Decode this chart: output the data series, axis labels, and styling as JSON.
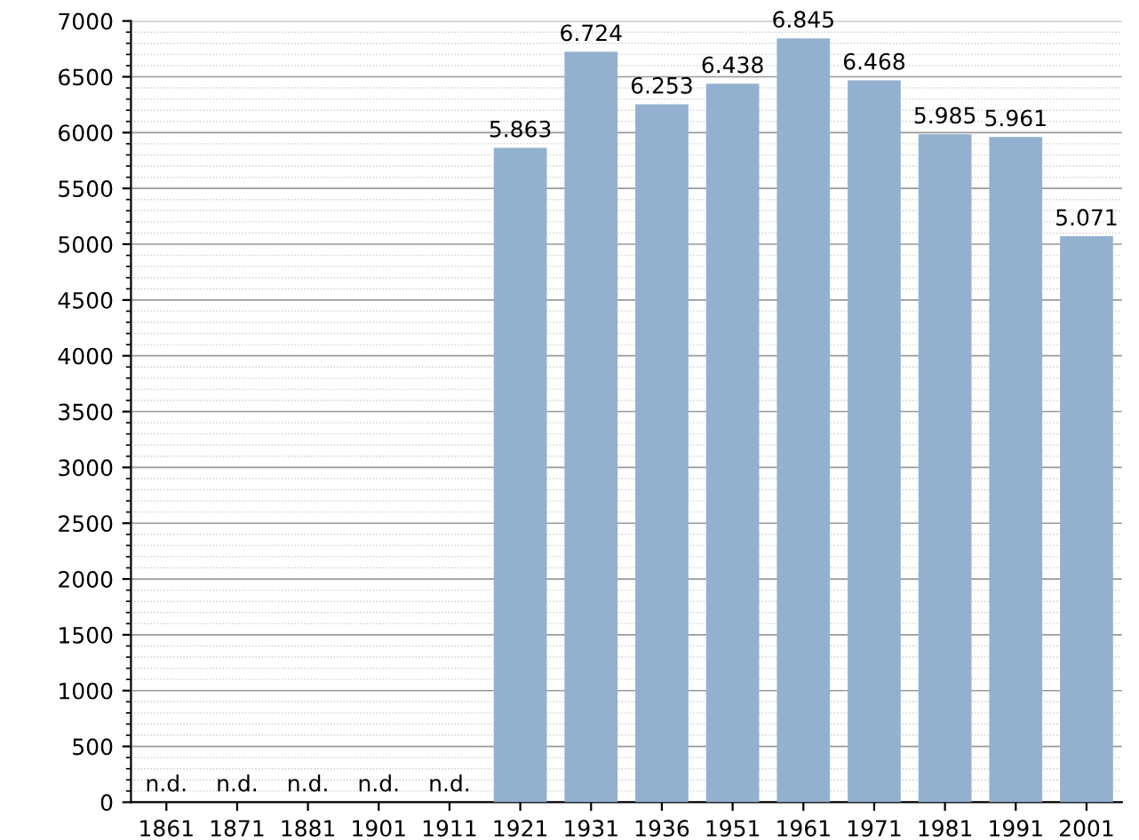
{
  "chart_data": {
    "type": "bar",
    "categories": [
      "1861",
      "1871",
      "1881",
      "1901",
      "1911",
      "1921",
      "1931",
      "1936",
      "1951",
      "1961",
      "1971",
      "1981",
      "1991",
      "2001"
    ],
    "values": [
      null,
      null,
      null,
      null,
      null,
      5863,
      6724,
      6253,
      6438,
      6845,
      6468,
      5985,
      5961,
      5071
    ],
    "value_labels": [
      "n.d.",
      "n.d.",
      "n.d.",
      "n.d.",
      "n.d.",
      "5.863",
      "6.724",
      "6.253",
      "6.438",
      "6.845",
      "6.468",
      "5.985",
      "5.961",
      "5.071"
    ],
    "color": "#93b1cf",
    "ylim": [
      0,
      7000
    ],
    "yticks": [
      0,
      500,
      1000,
      1500,
      2000,
      2500,
      3000,
      3500,
      4000,
      4500,
      5000,
      5500,
      6000,
      6500,
      7000
    ],
    "grid": "y"
  }
}
